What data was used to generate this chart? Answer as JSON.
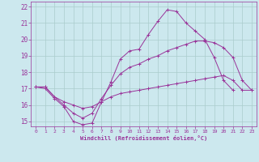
{
  "xlabel": "Windchill (Refroidissement éolien,°C)",
  "background_color": "#cce8ee",
  "line_color": "#993399",
  "grid_color": "#aacccc",
  "xlim": [
    -0.5,
    23.5
  ],
  "ylim": [
    14.7,
    22.3
  ],
  "yticks": [
    15,
    16,
    17,
    18,
    19,
    20,
    21,
    22
  ],
  "xticks": [
    0,
    1,
    2,
    3,
    4,
    5,
    6,
    7,
    8,
    9,
    10,
    11,
    12,
    13,
    14,
    15,
    16,
    17,
    18,
    19,
    20,
    21,
    22,
    23
  ],
  "line1_x": [
    0,
    1,
    2,
    3,
    4,
    5,
    6,
    7,
    8,
    9,
    10,
    11,
    12,
    13,
    14,
    15,
    16,
    17,
    18,
    19,
    20,
    21
  ],
  "line1_y": [
    17.1,
    17.0,
    16.4,
    15.9,
    15.0,
    14.8,
    14.9,
    16.2,
    17.4,
    18.8,
    19.3,
    19.4,
    20.3,
    21.1,
    21.8,
    21.7,
    21.0,
    20.5,
    20.0,
    18.9,
    17.5,
    16.9
  ],
  "line2_x": [
    0,
    1,
    2,
    3,
    4,
    5,
    6,
    7,
    8,
    9,
    10,
    11,
    12,
    13,
    14,
    15,
    16,
    17,
    18,
    19,
    20,
    21,
    22,
    23
  ],
  "line2_y": [
    17.1,
    17.1,
    16.5,
    16.0,
    15.5,
    15.2,
    15.5,
    16.4,
    17.2,
    17.9,
    18.3,
    18.5,
    18.8,
    19.0,
    19.3,
    19.5,
    19.7,
    19.9,
    19.9,
    19.8,
    19.5,
    18.9,
    17.5,
    16.9
  ],
  "line3_x": [
    0,
    1,
    2,
    3,
    4,
    5,
    6,
    7,
    8,
    9,
    10,
    11,
    12,
    13,
    14,
    15,
    16,
    17,
    18,
    19,
    20,
    21,
    22,
    23
  ],
  "line3_y": [
    17.1,
    17.1,
    16.5,
    16.2,
    16.0,
    15.8,
    15.9,
    16.2,
    16.5,
    16.7,
    16.8,
    16.9,
    17.0,
    17.1,
    17.2,
    17.3,
    17.4,
    17.5,
    17.6,
    17.7,
    17.8,
    17.5,
    16.9,
    16.9
  ]
}
